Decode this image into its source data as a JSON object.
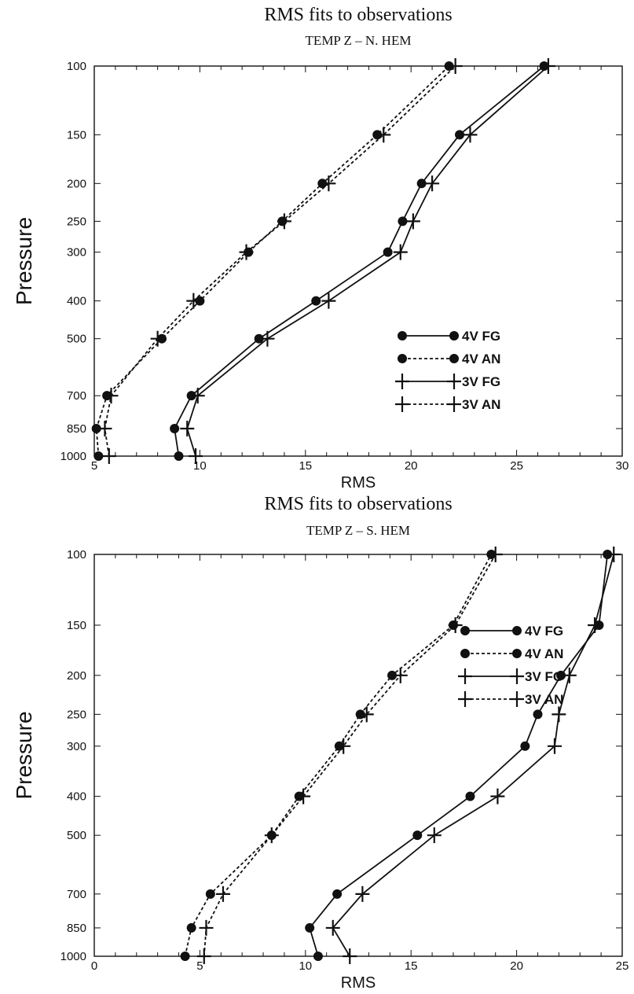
{
  "chart_data": [
    {
      "type": "line",
      "title": "RMS fits to observations",
      "subtitle": "TEMP Z – N. HEM",
      "xlabel": "RMS",
      "ylabel": "Pressure",
      "xlim": [
        5,
        30
      ],
      "ylim": [
        1000,
        100
      ],
      "y_scale": "log",
      "x_ticks": [
        5,
        10,
        15,
        20,
        25,
        30
      ],
      "y_ticks": [
        100,
        150,
        200,
        250,
        300,
        400,
        500,
        700,
        850,
        1000
      ],
      "legend_position": "lower-right",
      "series": [
        {
          "name": "4V FG",
          "line": "solid",
          "marker": "circle",
          "points": [
            {
              "x": 9.0,
              "y": 1000
            },
            {
              "x": 8.8,
              "y": 850
            },
            {
              "x": 9.6,
              "y": 700
            },
            {
              "x": 12.8,
              "y": 500
            },
            {
              "x": 15.5,
              "y": 400
            },
            {
              "x": 18.9,
              "y": 300
            },
            {
              "x": 19.6,
              "y": 250
            },
            {
              "x": 20.5,
              "y": 200
            },
            {
              "x": 22.3,
              "y": 150
            },
            {
              "x": 26.3,
              "y": 100
            }
          ]
        },
        {
          "name": "4V AN",
          "line": "dashed",
          "marker": "circle",
          "points": [
            {
              "x": 5.2,
              "y": 1000
            },
            {
              "x": 5.1,
              "y": 850
            },
            {
              "x": 5.6,
              "y": 700
            },
            {
              "x": 8.2,
              "y": 500
            },
            {
              "x": 10.0,
              "y": 400
            },
            {
              "x": 12.3,
              "y": 300
            },
            {
              "x": 13.9,
              "y": 250
            },
            {
              "x": 15.8,
              "y": 200
            },
            {
              "x": 18.4,
              "y": 150
            },
            {
              "x": 21.8,
              "y": 100
            }
          ]
        },
        {
          "name": "3V FG",
          "line": "solid",
          "marker": "plus",
          "points": [
            {
              "x": 9.8,
              "y": 1000
            },
            {
              "x": 9.4,
              "y": 850
            },
            {
              "x": 9.9,
              "y": 700
            },
            {
              "x": 13.2,
              "y": 500
            },
            {
              "x": 16.1,
              "y": 400
            },
            {
              "x": 19.5,
              "y": 300
            },
            {
              "x": 20.1,
              "y": 250
            },
            {
              "x": 21.0,
              "y": 200
            },
            {
              "x": 22.8,
              "y": 150
            },
            {
              "x": 26.5,
              "y": 100
            }
          ]
        },
        {
          "name": "3V AN",
          "line": "dashed",
          "marker": "plus",
          "points": [
            {
              "x": 5.7,
              "y": 1000
            },
            {
              "x": 5.5,
              "y": 850
            },
            {
              "x": 5.8,
              "y": 700
            },
            {
              "x": 8.0,
              "y": 500
            },
            {
              "x": 9.7,
              "y": 400
            },
            {
              "x": 12.2,
              "y": 300
            },
            {
              "x": 14.0,
              "y": 250
            },
            {
              "x": 16.1,
              "y": 200
            },
            {
              "x": 18.7,
              "y": 150
            },
            {
              "x": 22.1,
              "y": 100
            }
          ]
        }
      ]
    },
    {
      "type": "line",
      "title": "RMS fits to observations",
      "subtitle": "TEMP Z – S. HEM",
      "xlabel": "RMS",
      "ylabel": "Pressure",
      "xlim": [
        0,
        25
      ],
      "ylim": [
        1000,
        100
      ],
      "y_scale": "log",
      "x_ticks": [
        0,
        5,
        10,
        15,
        20,
        25
      ],
      "y_ticks": [
        100,
        150,
        200,
        250,
        300,
        400,
        500,
        700,
        850,
        1000
      ],
      "legend_position": "lower-right",
      "series": [
        {
          "name": "4V FG",
          "line": "solid",
          "marker": "circle",
          "points": [
            {
              "x": 10.6,
              "y": 1000
            },
            {
              "x": 10.2,
              "y": 850
            },
            {
              "x": 11.5,
              "y": 700
            },
            {
              "x": 15.3,
              "y": 500
            },
            {
              "x": 17.8,
              "y": 400
            },
            {
              "x": 20.4,
              "y": 300
            },
            {
              "x": 21.0,
              "y": 250
            },
            {
              "x": 22.1,
              "y": 200
            },
            {
              "x": 23.9,
              "y": 150
            },
            {
              "x": 24.3,
              "y": 100
            }
          ]
        },
        {
          "name": "4V AN",
          "line": "dashed",
          "marker": "circle",
          "points": [
            {
              "x": 4.3,
              "y": 1000
            },
            {
              "x": 4.6,
              "y": 850
            },
            {
              "x": 5.5,
              "y": 700
            },
            {
              "x": 8.4,
              "y": 500
            },
            {
              "x": 9.7,
              "y": 400
            },
            {
              "x": 11.6,
              "y": 300
            },
            {
              "x": 12.6,
              "y": 250
            },
            {
              "x": 14.1,
              "y": 200
            },
            {
              "x": 17.0,
              "y": 150
            },
            {
              "x": 18.8,
              "y": 100
            }
          ]
        },
        {
          "name": "3V FG",
          "line": "solid",
          "marker": "plus",
          "points": [
            {
              "x": 12.1,
              "y": 1000
            },
            {
              "x": 11.3,
              "y": 850
            },
            {
              "x": 12.7,
              "y": 700
            },
            {
              "x": 16.1,
              "y": 500
            },
            {
              "x": 19.1,
              "y": 400
            },
            {
              "x": 21.8,
              "y": 300
            },
            {
              "x": 22.0,
              "y": 250
            },
            {
              "x": 22.5,
              "y": 200
            },
            {
              "x": 23.7,
              "y": 150
            },
            {
              "x": 24.6,
              "y": 100
            }
          ]
        },
        {
          "name": "3V AN",
          "line": "dashed",
          "marker": "plus",
          "points": [
            {
              "x": 5.2,
              "y": 1000
            },
            {
              "x": 5.3,
              "y": 850
            },
            {
              "x": 6.1,
              "y": 700
            },
            {
              "x": 8.4,
              "y": 500
            },
            {
              "x": 9.9,
              "y": 400
            },
            {
              "x": 11.8,
              "y": 300
            },
            {
              "x": 12.9,
              "y": 250
            },
            {
              "x": 14.5,
              "y": 200
            },
            {
              "x": 17.1,
              "y": 150
            },
            {
              "x": 19.0,
              "y": 100
            }
          ]
        }
      ]
    }
  ]
}
